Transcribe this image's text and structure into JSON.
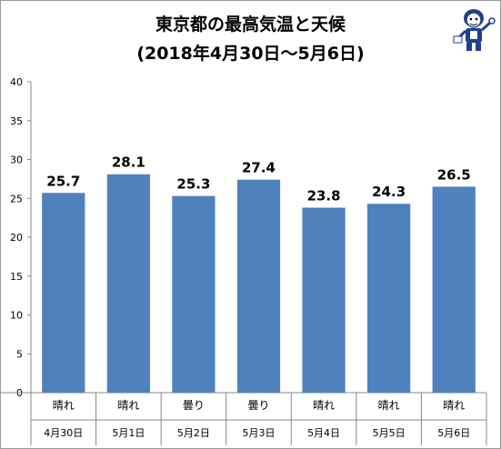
{
  "chart_data": {
    "type": "bar",
    "title": "東京都の最高気温と天候",
    "subtitle": "(2018年4月30日～5月6日)",
    "categories": [
      "4月30日",
      "5月1日",
      "5月2日",
      "5月3日",
      "5月4日",
      "5月5日",
      "5月6日"
    ],
    "weather": [
      "晴れ",
      "晴れ",
      "曇り",
      "曇り",
      "晴れ",
      "晴れ",
      "晴れ"
    ],
    "values": [
      25.7,
      28.1,
      25.3,
      27.4,
      23.8,
      24.3,
      26.5
    ],
    "value_labels": [
      "25.7",
      "28.1",
      "25.3",
      "27.4",
      "23.8",
      "24.3",
      "26.5"
    ],
    "ylim": [
      0,
      40
    ],
    "yticks": [
      0,
      5,
      10,
      15,
      20,
      25,
      30,
      35,
      40
    ],
    "grid": false,
    "bar_color": "#4f81bd"
  },
  "mascot_icon": "mascot-icon"
}
